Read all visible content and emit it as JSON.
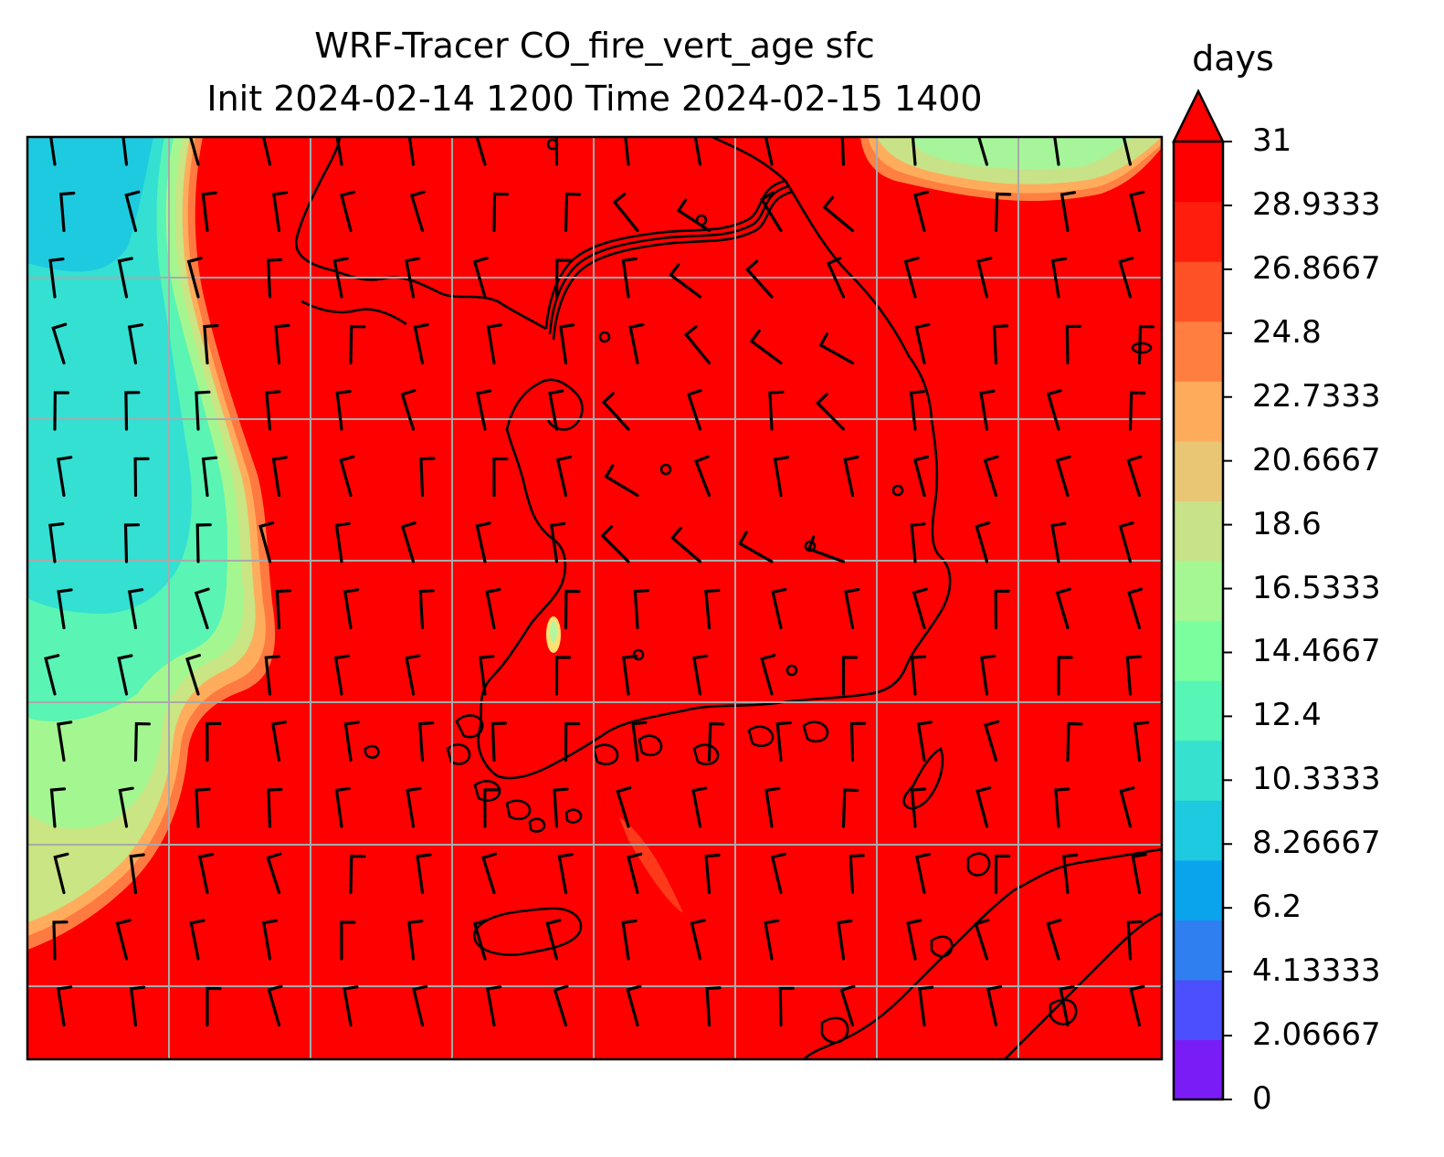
{
  "title_line1": "WRF-Tracer CO_fire_vert_age sfc",
  "title_line2": "Init 2024-02-14 1200 Time 2024-02-15 1400",
  "colorbar": {
    "unit": "days",
    "extend": "max",
    "ticks": [
      "0",
      "2.06667",
      "4.13333",
      "6.2",
      "8.26667",
      "10.3333",
      "12.4",
      "14.4667",
      "16.5333",
      "18.6",
      "20.6667",
      "22.7333",
      "24.8",
      "26.8667",
      "28.9333",
      "31"
    ],
    "colors": [
      "#7a1cf6",
      "#4b4ffd",
      "#2f7ff0",
      "#0aa4ec",
      "#1ecae0",
      "#36e2cf",
      "#57f5b6",
      "#7bfe9e",
      "#a4f793",
      "#c8e387",
      "#e8c673",
      "#feab5b",
      "#ff7e40",
      "#ff5126",
      "#ff1e0d",
      "#ff0000"
    ]
  },
  "map": {
    "dominant_color": "#ff0000",
    "gridline_color": "#aaaaaa",
    "coastline_color": "#000000"
  }
}
